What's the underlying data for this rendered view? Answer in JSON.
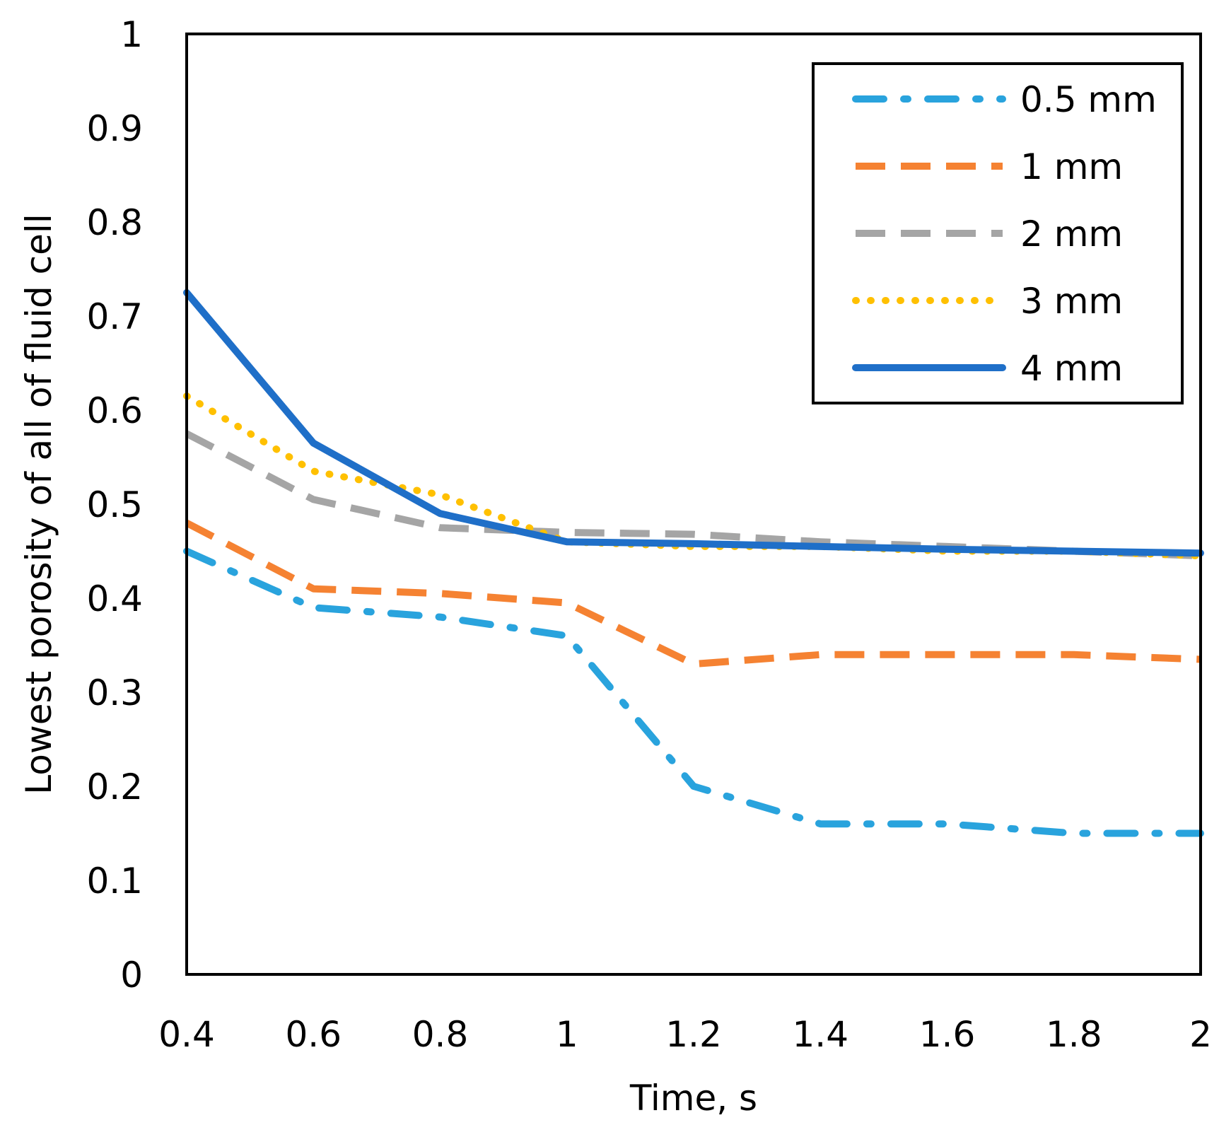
{
  "chart_data": {
    "type": "line",
    "title": "",
    "xlabel": "Time, s",
    "ylabel": "Lowest porosity of all of fluid cell",
    "xlim": [
      0.4,
      2
    ],
    "ylim": [
      0,
      1
    ],
    "x_ticks": [
      0.4,
      0.6,
      0.8,
      1,
      1.2,
      1.4,
      1.6,
      1.8,
      2
    ],
    "x_tick_labels": [
      "0.4",
      "0.6",
      "0.8",
      "1",
      "1.2",
      "1.4",
      "1.6",
      "1.8",
      "2"
    ],
    "y_ticks": [
      0,
      0.1,
      0.2,
      0.3,
      0.4,
      0.5,
      0.6,
      0.7,
      0.8,
      0.9,
      1
    ],
    "y_tick_labels": [
      "0",
      "0.1",
      "0.2",
      "0.3",
      "0.4",
      "0.5",
      "0.6",
      "0.7",
      "0.8",
      "0.9",
      "1"
    ],
    "grid": false,
    "legend_position": "top-right",
    "x": [
      0.4,
      0.6,
      0.8,
      1.0,
      1.2,
      1.4,
      1.6,
      1.8,
      2.0
    ],
    "series": [
      {
        "name": "0.5 mm",
        "style": "dash-dot",
        "color": "#29A3DD",
        "values": [
          0.45,
          0.39,
          0.38,
          0.36,
          0.2,
          0.16,
          0.16,
          0.15,
          0.15
        ]
      },
      {
        "name": "1 mm",
        "style": "dashed",
        "color": "#F58232",
        "values": [
          0.48,
          0.41,
          0.405,
          0.395,
          0.33,
          0.34,
          0.34,
          0.34,
          0.335
        ]
      },
      {
        "name": "2 mm",
        "style": "dashed",
        "color": "#A5A5A5",
        "values": [
          0.575,
          0.505,
          0.475,
          0.47,
          0.468,
          0.46,
          0.455,
          0.45,
          0.445
        ]
      },
      {
        "name": "3 mm",
        "style": "dotted",
        "color": "#FFC000",
        "values": [
          0.615,
          0.535,
          0.51,
          0.46,
          0.455,
          0.455,
          0.45,
          0.45,
          0.445
        ]
      },
      {
        "name": "4 mm",
        "style": "solid",
        "color": "#1F6FC8",
        "values": [
          0.725,
          0.565,
          0.49,
          0.46,
          0.458,
          0.455,
          0.452,
          0.45,
          0.448
        ]
      }
    ]
  }
}
